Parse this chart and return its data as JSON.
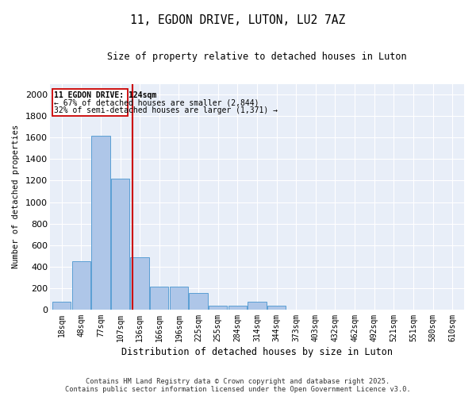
{
  "title_line1": "11, EGDON DRIVE, LUTON, LU2 7AZ",
  "title_line2": "Size of property relative to detached houses in Luton",
  "xlabel": "Distribution of detached houses by size in Luton",
  "ylabel": "Number of detached properties",
  "categories": [
    "18sqm",
    "48sqm",
    "77sqm",
    "107sqm",
    "136sqm",
    "166sqm",
    "196sqm",
    "225sqm",
    "255sqm",
    "284sqm",
    "314sqm",
    "344sqm",
    "373sqm",
    "403sqm",
    "432sqm",
    "462sqm",
    "492sqm",
    "521sqm",
    "551sqm",
    "580sqm",
    "610sqm"
  ],
  "values": [
    75,
    450,
    1620,
    1220,
    490,
    215,
    215,
    155,
    40,
    40,
    75,
    40,
    0,
    0,
    0,
    0,
    0,
    0,
    0,
    0,
    0
  ],
  "bar_color": "#aec6e8",
  "bar_edgecolor": "#5a9fd4",
  "vline_color": "#cc0000",
  "vline_x": 3.62,
  "annotation_line1": "11 EGDON DRIVE: 124sqm",
  "annotation_line2": "← 67% of detached houses are smaller (2,844)",
  "annotation_line3": "32% of semi-detached houses are larger (1,371) →",
  "ylim": [
    0,
    2100
  ],
  "yticks": [
    0,
    200,
    400,
    600,
    800,
    1000,
    1200,
    1400,
    1600,
    1800,
    2000
  ],
  "background_color": "#e8eef8",
  "footer_line1": "Contains HM Land Registry data © Crown copyright and database right 2025.",
  "footer_line2": "Contains public sector information licensed under the Open Government Licence v3.0.",
  "fig_width": 6.0,
  "fig_height": 5.0,
  "dpi": 100
}
